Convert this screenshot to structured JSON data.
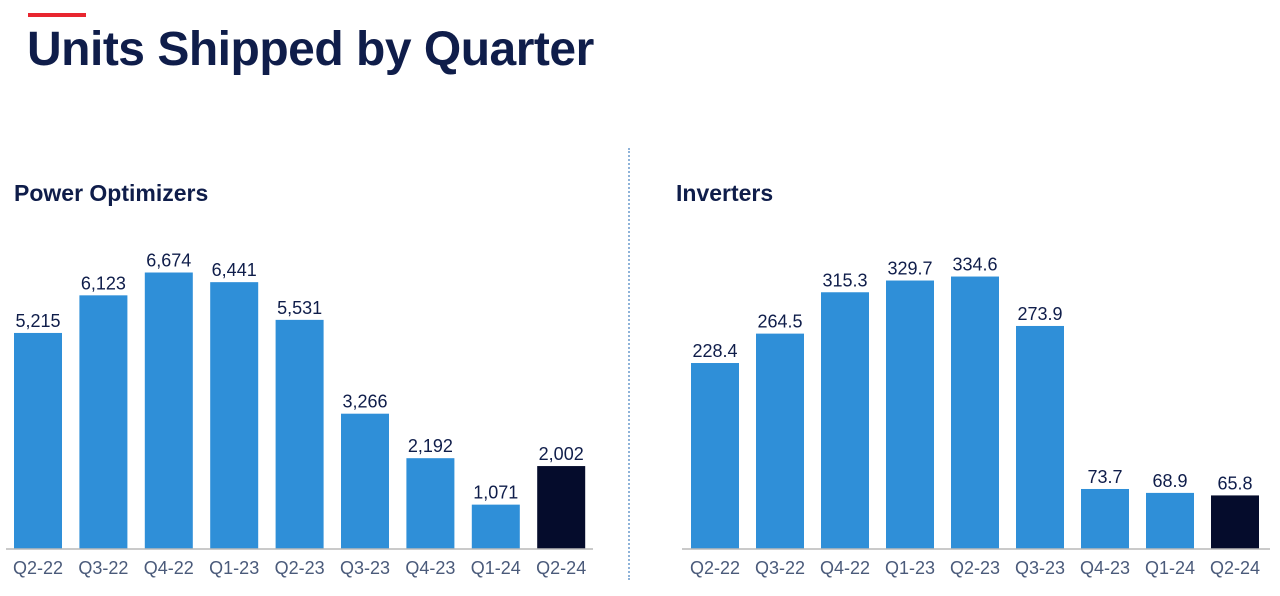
{
  "page": {
    "title": "Units Shipped by Quarter"
  },
  "colors": {
    "accent": "#e8262f",
    "bar": "#2f8fd8",
    "highlight": "#050c2c",
    "text": "#0f1d4a"
  },
  "chart_data": [
    {
      "type": "bar",
      "title": "Power Optimizers",
      "xlabel": "",
      "ylabel": "",
      "grid": false,
      "categories": [
        "Q2-22",
        "Q3-22",
        "Q4-22",
        "Q1-23",
        "Q2-23",
        "Q3-23",
        "Q4-23",
        "Q1-24",
        "Q2-24"
      ],
      "values": [
        5215,
        6123,
        6674,
        6441,
        5531,
        3266,
        2192,
        1071,
        2002
      ],
      "labels": [
        "5,215",
        "6,123",
        "6,674",
        "6,441",
        "5,531",
        "3,266",
        "2,192",
        "1,071",
        "2,002"
      ],
      "highlight_index": 8,
      "ylim": [
        0,
        7000
      ]
    },
    {
      "type": "bar",
      "title": "Inverters",
      "xlabel": "",
      "ylabel": "",
      "grid": false,
      "categories": [
        "Q2-22",
        "Q3-22",
        "Q4-22",
        "Q1-23",
        "Q2-23",
        "Q3-23",
        "Q4-23",
        "Q1-24",
        "Q2-24"
      ],
      "values": [
        228.4,
        264.5,
        315.3,
        329.7,
        334.6,
        273.9,
        73.7,
        68.9,
        65.8
      ],
      "labels": [
        "228.4",
        "264.5",
        "315.3",
        "329.7",
        "334.6",
        "273.9",
        "73.7",
        "68.9",
        "65.8"
      ],
      "highlight_index": 8,
      "ylim": [
        0,
        350
      ]
    }
  ]
}
